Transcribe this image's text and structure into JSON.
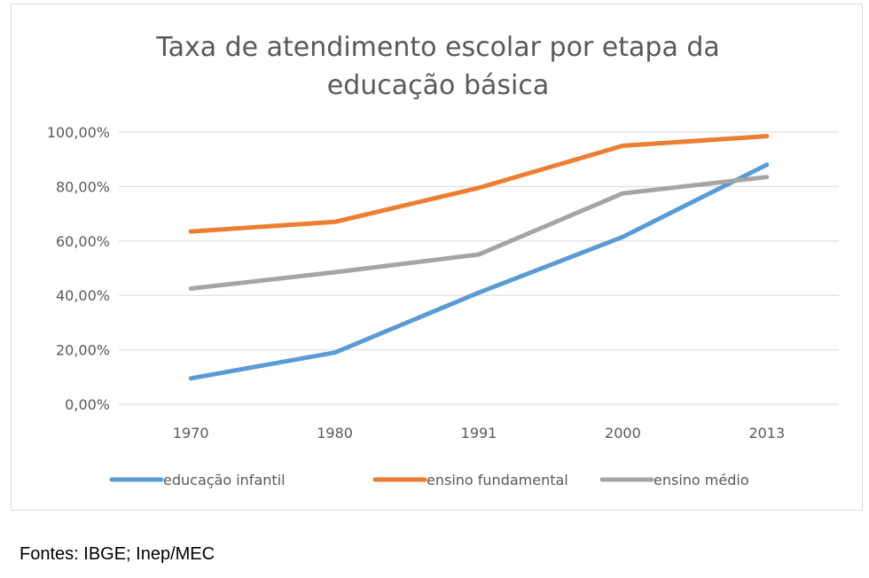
{
  "chart_data": {
    "type": "line",
    "title_lines": [
      "Taxa de atendimento escolar por etapa da",
      "educação básica"
    ],
    "categories": [
      "1970",
      "1980",
      "1991",
      "2000",
      "2013"
    ],
    "y_ticks": [
      "0,00%",
      "20,00%",
      "40,00%",
      "60,00%",
      "80,00%",
      "100,00%"
    ],
    "ylim": [
      0,
      100
    ],
    "grid": true,
    "legend_position": "bottom",
    "series": [
      {
        "name": "educação infantil",
        "color": "#5b9bd5",
        "values": [
          9.5,
          19,
          41,
          61.5,
          88
        ]
      },
      {
        "name": "ensino fundamental",
        "color": "#ed7d31",
        "values": [
          63.5,
          67,
          79.5,
          95,
          98.5
        ]
      },
      {
        "name": "ensino médio",
        "color": "#a5a5a5",
        "values": [
          42.5,
          48.5,
          55,
          77.5,
          83.5
        ]
      }
    ]
  },
  "footer": {
    "source": "Fontes: IBGE; Inep/MEC"
  }
}
